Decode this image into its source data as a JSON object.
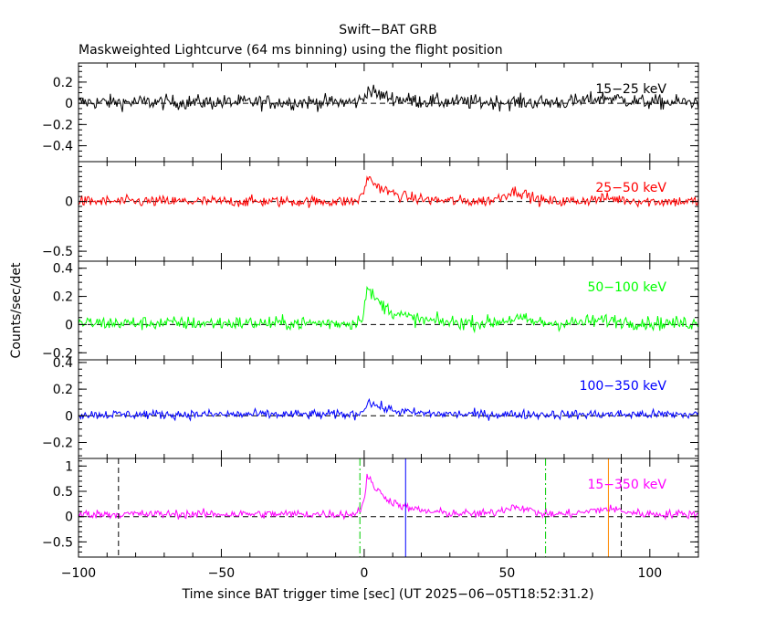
{
  "chart_data": {
    "type": "line",
    "title": "Swift−BAT GRB",
    "subtitle": "Maskweighted Lightcurve (64 ms binning) using the flight position",
    "xlabel": "Time since BAT trigger time [sec] (UT 2025−06−05T18:52:31.2)",
    "ylabel": "Counts/sec/det",
    "xlim": [
      -100,
      117
    ],
    "x_ticks": [
      -100,
      -50,
      0,
      50,
      100
    ],
    "x_tick_labels": [
      "−100",
      "−50",
      "0",
      "50",
      "100"
    ],
    "peak_time": 1.0,
    "panels": [
      {
        "name": "15-25",
        "label": "15−25 keV",
        "color": "#000000",
        "ylim": [
          -0.55,
          0.38
        ],
        "y_ticks": [
          0.2,
          0,
          -0.2,
          -0.4
        ],
        "y_tick_labels": [
          "0.2",
          "0",
          "−0.2",
          "−0.4"
        ],
        "baseline": 0.01,
        "noise": 0.05,
        "peak": 0.12,
        "bump_55": 0.0,
        "bump_85": 0.04
      },
      {
        "name": "25-50",
        "label": "25−50 keV",
        "color": "#ff0000",
        "ylim": [
          -0.6,
          0.4
        ],
        "y_ticks": [
          0,
          -0.5
        ],
        "y_tick_labels": [
          "0",
          "−0.5"
        ],
        "baseline": 0.0,
        "noise": 0.04,
        "peak": 0.25,
        "bump_55": 0.1,
        "bump_85": 0.03
      },
      {
        "name": "50-100",
        "label": "50−100 keV",
        "color": "#00ff00",
        "ylim": [
          -0.25,
          0.45
        ],
        "y_ticks": [
          0.4,
          0.2,
          0,
          -0.2
        ],
        "y_tick_labels": [
          "0.4",
          "0.2",
          "0",
          "−0.2"
        ],
        "baseline": 0.01,
        "noise": 0.035,
        "peak": 0.25,
        "bump_55": 0.03,
        "bump_85": 0.02
      },
      {
        "name": "100-350",
        "label": "100−350 keV",
        "color": "#0000ff",
        "ylim": [
          -0.32,
          0.42
        ],
        "y_ticks": [
          0.4,
          0.2,
          0,
          -0.2
        ],
        "y_tick_labels": [
          "0.4",
          "0.2",
          "0",
          "−0.2"
        ],
        "baseline": 0.01,
        "noise": 0.025,
        "peak": 0.1,
        "bump_55": 0.0,
        "bump_85": 0.0
      },
      {
        "name": "15-350",
        "label": "15−350 keV",
        "color": "#ff00ff",
        "ylim": [
          -0.8,
          1.15
        ],
        "y_ticks": [
          1,
          0.5,
          0,
          -0.5
        ],
        "y_tick_labels": [
          "1",
          "0.5",
          "0",
          "−0.5"
        ],
        "baseline": 0.05,
        "noise": 0.06,
        "peak": 0.75,
        "bump_55": 0.15,
        "bump_85": 0.1
      }
    ],
    "markers": [
      {
        "name": "t-start-dashed",
        "time": -86,
        "color": "#000000",
        "style": "dashed"
      },
      {
        "name": "t-end-dashed",
        "time": 90,
        "color": "#000000",
        "style": "dashed"
      },
      {
        "name": "t90-start",
        "time": -1.5,
        "color": "#00cc00",
        "style": "dashdot"
      },
      {
        "name": "t90-end",
        "time": 63.5,
        "color": "#00cc00",
        "style": "dashdot"
      },
      {
        "name": "blue-marker",
        "time": 14.5,
        "color": "#0000ff",
        "style": "solid"
      },
      {
        "name": "orange-marker",
        "time": 85.5,
        "color": "#ff8800",
        "style": "solid"
      }
    ]
  }
}
